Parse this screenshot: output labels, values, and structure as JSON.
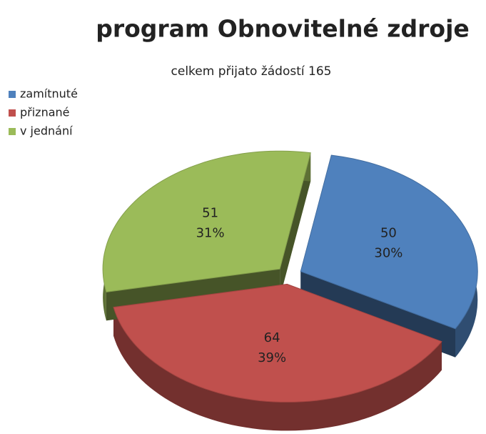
{
  "chart_data": {
    "type": "pie",
    "title": "program Obnovitelné zdroje",
    "subtitle": "celkem přijato žádostí 165",
    "categories": [
      "zamítnuté",
      "přiznané",
      "v jednání"
    ],
    "values": [
      50,
      64,
      51
    ],
    "percent_labels": [
      "30%",
      "39%",
      "31%"
    ],
    "colors": [
      "#4f81bd",
      "#c0504d",
      "#9bbb59"
    ],
    "legend": "top-left"
  }
}
